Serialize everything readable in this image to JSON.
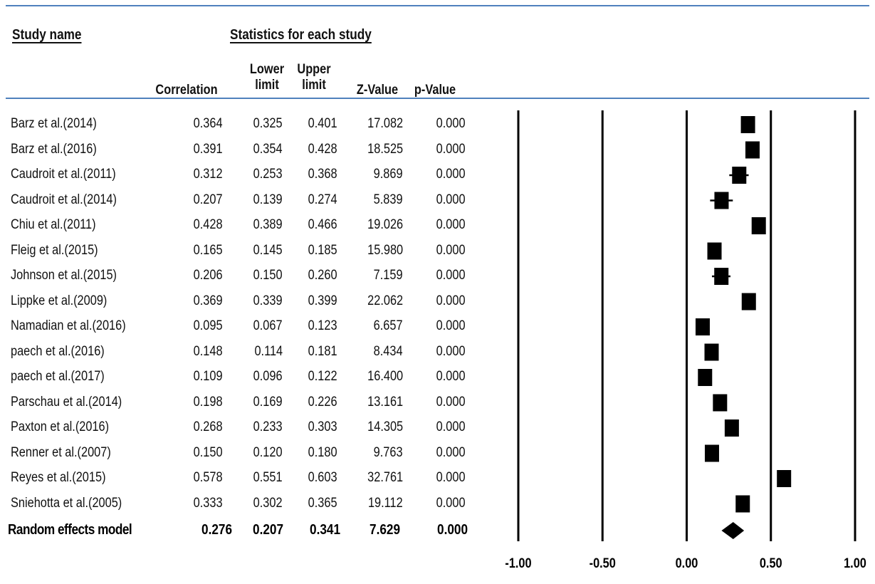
{
  "headers": {
    "study_name": "Study name",
    "statistics": "Statistics for each study",
    "columns": [
      {
        "key": "correlation",
        "label": "Correlation"
      },
      {
        "key": "lower",
        "label": "Lower\nlimit"
      },
      {
        "key": "upper",
        "label": "Upper\nlimit"
      },
      {
        "key": "z",
        "label": "Z-Value"
      },
      {
        "key": "p",
        "label": "p-Value"
      }
    ]
  },
  "studies": [
    {
      "name": "Barz et al.(2014)",
      "correlation": "0.364",
      "lower": "0.325",
      "upper": "0.401",
      "z": "17.082",
      "p": "0.000"
    },
    {
      "name": "Barz et al.(2016)",
      "correlation": "0.391",
      "lower": "0.354",
      "upper": "0.428",
      "z": "18.525",
      "p": "0.000"
    },
    {
      "name": "Caudroit et al.(2011)",
      "correlation": "0.312",
      "lower": "0.253",
      "upper": "0.368",
      "z": "9.869",
      "p": "0.000"
    },
    {
      "name": "Caudroit et al.(2014)",
      "correlation": "0.207",
      "lower": "0.139",
      "upper": "0.274",
      "z": "5.839",
      "p": "0.000"
    },
    {
      "name": "Chiu et al.(2011)",
      "correlation": "0.428",
      "lower": "0.389",
      "upper": "0.466",
      "z": "19.026",
      "p": "0.000"
    },
    {
      "name": "Fleig et al.(2015)",
      "correlation": "0.165",
      "lower": "0.145",
      "upper": "0.185",
      "z": "15.980",
      "p": "0.000"
    },
    {
      "name": "Johnson et al.(2015)",
      "correlation": "0.206",
      "lower": "0.150",
      "upper": "0.260",
      "z": "7.159",
      "p": "0.000"
    },
    {
      "name": "Lippke et al.(2009)",
      "correlation": "0.369",
      "lower": "0.339",
      "upper": "0.399",
      "z": "22.062",
      "p": "0.000"
    },
    {
      "name": "Namadian et al.(2016)",
      "correlation": "0.095",
      "lower": "0.067",
      "upper": "0.123",
      "z": "6.657",
      "p": "0.000"
    },
    {
      "name": "paech et al.(2016)",
      "correlation": "0.148",
      "lower": "0.114",
      "upper": "0.181",
      "z": "8.434",
      "p": "0.000"
    },
    {
      "name": "paech et al.(2017)",
      "correlation": "0.109",
      "lower": "0.096",
      "upper": "0.122",
      "z": "16.400",
      "p": "0.000"
    },
    {
      "name": "Parschau et al.(2014)",
      "correlation": "0.198",
      "lower": "0.169",
      "upper": "0.226",
      "z": "13.161",
      "p": "0.000"
    },
    {
      "name": "Paxton et al.(2016)",
      "correlation": "0.268",
      "lower": "0.233",
      "upper": "0.303",
      "z": "14.305",
      "p": "0.000"
    },
    {
      "name": "Renner et al.(2007)",
      "correlation": "0.150",
      "lower": "0.120",
      "upper": "0.180",
      "z": "9.763",
      "p": "0.000"
    },
    {
      "name": "Reyes et al.(2015)",
      "correlation": "0.578",
      "lower": "0.551",
      "upper": "0.603",
      "z": "32.761",
      "p": "0.000"
    },
    {
      "name": "Sniehotta et al.(2005)",
      "correlation": "0.333",
      "lower": "0.302",
      "upper": "0.365",
      "z": "19.112",
      "p": "0.000"
    }
  ],
  "summary": {
    "name": "Random effects model",
    "correlation": "0.276",
    "lower": "0.207",
    "upper": "0.341",
    "z": "7.629",
    "p": "0.000"
  },
  "colors": {
    "rule": "#4f81bd",
    "ink": "#000000"
  },
  "chart_data": {
    "type": "forest",
    "xlim": [
      -1,
      1
    ],
    "x_ticks": [
      -1.0,
      -0.5,
      0.0,
      0.5,
      1.0
    ],
    "x_tick_labels": [
      "-1.00",
      "-0.50",
      "0.00",
      "0.50",
      "1.00"
    ],
    "grid": "vertical lines at ticks",
    "points": [
      {
        "label": "Barz et al.(2014)",
        "estimate": 0.364,
        "lower": 0.325,
        "upper": 0.401
      },
      {
        "label": "Barz et al.(2016)",
        "estimate": 0.391,
        "lower": 0.354,
        "upper": 0.428
      },
      {
        "label": "Caudroit et al.(2011)",
        "estimate": 0.312,
        "lower": 0.253,
        "upper": 0.368
      },
      {
        "label": "Caudroit et al.(2014)",
        "estimate": 0.207,
        "lower": 0.139,
        "upper": 0.274
      },
      {
        "label": "Chiu et al.(2011)",
        "estimate": 0.428,
        "lower": 0.389,
        "upper": 0.466
      },
      {
        "label": "Fleig et al.(2015)",
        "estimate": 0.165,
        "lower": 0.145,
        "upper": 0.185
      },
      {
        "label": "Johnson et al.(2015)",
        "estimate": 0.206,
        "lower": 0.15,
        "upper": 0.26
      },
      {
        "label": "Lippke et al.(2009)",
        "estimate": 0.369,
        "lower": 0.339,
        "upper": 0.399
      },
      {
        "label": "Namadian et al.(2016)",
        "estimate": 0.095,
        "lower": 0.067,
        "upper": 0.123
      },
      {
        "label": "paech et al.(2016)",
        "estimate": 0.148,
        "lower": 0.114,
        "upper": 0.181
      },
      {
        "label": "paech et al.(2017)",
        "estimate": 0.109,
        "lower": 0.096,
        "upper": 0.122
      },
      {
        "label": "Parschau et al.(2014)",
        "estimate": 0.198,
        "lower": 0.169,
        "upper": 0.226
      },
      {
        "label": "Paxton et al.(2016)",
        "estimate": 0.268,
        "lower": 0.233,
        "upper": 0.303
      },
      {
        "label": "Renner et al.(2007)",
        "estimate": 0.15,
        "lower": 0.12,
        "upper": 0.18
      },
      {
        "label": "Reyes et al.(2015)",
        "estimate": 0.578,
        "lower": 0.551,
        "upper": 0.603
      },
      {
        "label": "Sniehotta et al.(2005)",
        "estimate": 0.333,
        "lower": 0.302,
        "upper": 0.365
      }
    ],
    "summary": {
      "label": "Random effects model",
      "estimate": 0.276,
      "lower": 0.207,
      "upper": 0.341
    }
  }
}
